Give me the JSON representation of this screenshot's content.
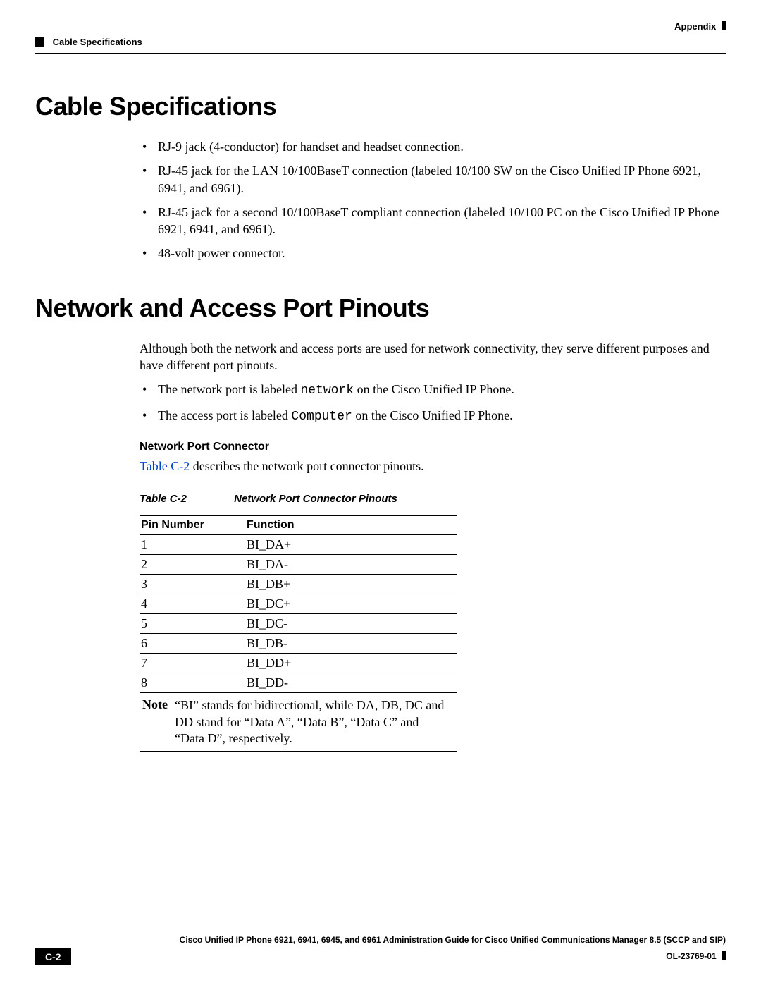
{
  "header": {
    "right": "Appendix",
    "left": "Cable Specifications"
  },
  "sections": {
    "cable_spec": {
      "title": "Cable Specifications",
      "bullets": [
        "RJ-9 jack (4-conductor) for handset and headset connection.",
        "RJ-45 jack for the LAN 10/100BaseT connection (labeled 10/100 SW on the Cisco Unified IP Phone 6921, 6941, and 6961).",
        "RJ-45 jack for a second 10/100BaseT compliant connection (labeled 10/100 PC on the Cisco Unified IP Phone 6921, 6941, and 6961).",
        "48-volt power connector."
      ]
    },
    "pinouts": {
      "title": "Network and Access Port Pinouts",
      "intro": "Although both the network and access ports are used for network connectivity, they serve different purposes and have different port pinouts.",
      "bullet_net_pre": "The network port is labeled ",
      "bullet_net_code": "network",
      "bullet_net_post": " on the Cisco Unified IP Phone.",
      "bullet_acc_pre": "The access port is labeled ",
      "bullet_acc_code": "Computer",
      "bullet_acc_post": " on the Cisco Unified IP Phone.",
      "sub_h": "Network Port Connector",
      "sub_p_link": "Table C-2",
      "sub_p_rest": " describes the network port connector pinouts.",
      "table": {
        "caption_num": "Table C-2",
        "caption_title": "Network Port Connector Pinouts",
        "col1": "Pin Number",
        "col2": "Function",
        "rows": [
          [
            "1",
            "BI_DA+"
          ],
          [
            "2",
            "BI_DA-"
          ],
          [
            "3",
            "BI_DB+"
          ],
          [
            "4",
            "BI_DC+"
          ],
          [
            "5",
            "BI_DC-"
          ],
          [
            "6",
            "BI_DB-"
          ],
          [
            "7",
            "BI_DD+"
          ],
          [
            "8",
            "BI_DD-"
          ]
        ],
        "note_label": "Note",
        "note_text": "“BI” stands for bidirectional, while DA, DB, DC and DD stand for “Data A”, “Data B”, “Data C” and “Data D”, respectively."
      }
    }
  },
  "footer": {
    "title": "Cisco Unified IP Phone 6921, 6941, 6945, and 6961 Administration Guide for Cisco Unified Communications Manager 8.5 (SCCP and SIP)",
    "page": "C-2",
    "docid": "OL-23769-01"
  },
  "colors": {
    "link": "#0044cc",
    "text": "#000000",
    "bg": "#ffffff"
  }
}
